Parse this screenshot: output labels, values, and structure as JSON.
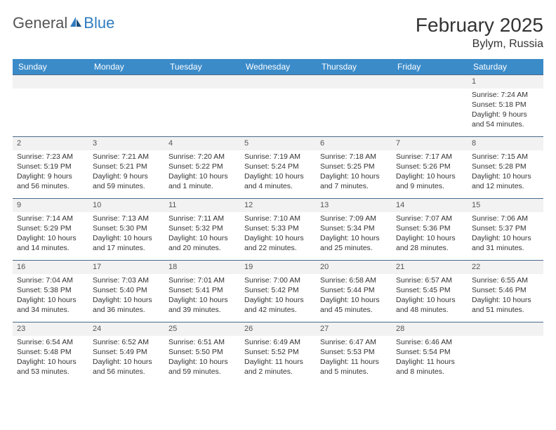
{
  "logo": {
    "part1": "General",
    "part2": "Blue"
  },
  "title": "February 2025",
  "location": "Bylym, Russia",
  "colors": {
    "header_bg": "#3b8bc9",
    "header_text": "#ffffff",
    "daynum_bg": "#f2f2f2",
    "row_border": "#4a6a8a",
    "body_text": "#333333",
    "logo_gray": "#555555",
    "logo_blue": "#2f7bbf",
    "page_bg": "#ffffff"
  },
  "typography": {
    "title_fontsize": 28,
    "location_fontsize": 16,
    "header_fontsize": 12,
    "cell_fontsize": 10.5,
    "daynum_fontsize": 11,
    "font_family": "Arial"
  },
  "calendar": {
    "days_of_week": [
      "Sunday",
      "Monday",
      "Tuesday",
      "Wednesday",
      "Thursday",
      "Friday",
      "Saturday"
    ],
    "weeks": [
      [
        null,
        null,
        null,
        null,
        null,
        null,
        {
          "n": "1",
          "sunrise": "Sunrise: 7:24 AM",
          "sunset": "Sunset: 5:18 PM",
          "daylight1": "Daylight: 9 hours",
          "daylight2": "and 54 minutes."
        }
      ],
      [
        {
          "n": "2",
          "sunrise": "Sunrise: 7:23 AM",
          "sunset": "Sunset: 5:19 PM",
          "daylight1": "Daylight: 9 hours",
          "daylight2": "and 56 minutes."
        },
        {
          "n": "3",
          "sunrise": "Sunrise: 7:21 AM",
          "sunset": "Sunset: 5:21 PM",
          "daylight1": "Daylight: 9 hours",
          "daylight2": "and 59 minutes."
        },
        {
          "n": "4",
          "sunrise": "Sunrise: 7:20 AM",
          "sunset": "Sunset: 5:22 PM",
          "daylight1": "Daylight: 10 hours",
          "daylight2": "and 1 minute."
        },
        {
          "n": "5",
          "sunrise": "Sunrise: 7:19 AM",
          "sunset": "Sunset: 5:24 PM",
          "daylight1": "Daylight: 10 hours",
          "daylight2": "and 4 minutes."
        },
        {
          "n": "6",
          "sunrise": "Sunrise: 7:18 AM",
          "sunset": "Sunset: 5:25 PM",
          "daylight1": "Daylight: 10 hours",
          "daylight2": "and 7 minutes."
        },
        {
          "n": "7",
          "sunrise": "Sunrise: 7:17 AM",
          "sunset": "Sunset: 5:26 PM",
          "daylight1": "Daylight: 10 hours",
          "daylight2": "and 9 minutes."
        },
        {
          "n": "8",
          "sunrise": "Sunrise: 7:15 AM",
          "sunset": "Sunset: 5:28 PM",
          "daylight1": "Daylight: 10 hours",
          "daylight2": "and 12 minutes."
        }
      ],
      [
        {
          "n": "9",
          "sunrise": "Sunrise: 7:14 AM",
          "sunset": "Sunset: 5:29 PM",
          "daylight1": "Daylight: 10 hours",
          "daylight2": "and 14 minutes."
        },
        {
          "n": "10",
          "sunrise": "Sunrise: 7:13 AM",
          "sunset": "Sunset: 5:30 PM",
          "daylight1": "Daylight: 10 hours",
          "daylight2": "and 17 minutes."
        },
        {
          "n": "11",
          "sunrise": "Sunrise: 7:11 AM",
          "sunset": "Sunset: 5:32 PM",
          "daylight1": "Daylight: 10 hours",
          "daylight2": "and 20 minutes."
        },
        {
          "n": "12",
          "sunrise": "Sunrise: 7:10 AM",
          "sunset": "Sunset: 5:33 PM",
          "daylight1": "Daylight: 10 hours",
          "daylight2": "and 22 minutes."
        },
        {
          "n": "13",
          "sunrise": "Sunrise: 7:09 AM",
          "sunset": "Sunset: 5:34 PM",
          "daylight1": "Daylight: 10 hours",
          "daylight2": "and 25 minutes."
        },
        {
          "n": "14",
          "sunrise": "Sunrise: 7:07 AM",
          "sunset": "Sunset: 5:36 PM",
          "daylight1": "Daylight: 10 hours",
          "daylight2": "and 28 minutes."
        },
        {
          "n": "15",
          "sunrise": "Sunrise: 7:06 AM",
          "sunset": "Sunset: 5:37 PM",
          "daylight1": "Daylight: 10 hours",
          "daylight2": "and 31 minutes."
        }
      ],
      [
        {
          "n": "16",
          "sunrise": "Sunrise: 7:04 AM",
          "sunset": "Sunset: 5:38 PM",
          "daylight1": "Daylight: 10 hours",
          "daylight2": "and 34 minutes."
        },
        {
          "n": "17",
          "sunrise": "Sunrise: 7:03 AM",
          "sunset": "Sunset: 5:40 PM",
          "daylight1": "Daylight: 10 hours",
          "daylight2": "and 36 minutes."
        },
        {
          "n": "18",
          "sunrise": "Sunrise: 7:01 AM",
          "sunset": "Sunset: 5:41 PM",
          "daylight1": "Daylight: 10 hours",
          "daylight2": "and 39 minutes."
        },
        {
          "n": "19",
          "sunrise": "Sunrise: 7:00 AM",
          "sunset": "Sunset: 5:42 PM",
          "daylight1": "Daylight: 10 hours",
          "daylight2": "and 42 minutes."
        },
        {
          "n": "20",
          "sunrise": "Sunrise: 6:58 AM",
          "sunset": "Sunset: 5:44 PM",
          "daylight1": "Daylight: 10 hours",
          "daylight2": "and 45 minutes."
        },
        {
          "n": "21",
          "sunrise": "Sunrise: 6:57 AM",
          "sunset": "Sunset: 5:45 PM",
          "daylight1": "Daylight: 10 hours",
          "daylight2": "and 48 minutes."
        },
        {
          "n": "22",
          "sunrise": "Sunrise: 6:55 AM",
          "sunset": "Sunset: 5:46 PM",
          "daylight1": "Daylight: 10 hours",
          "daylight2": "and 51 minutes."
        }
      ],
      [
        {
          "n": "23",
          "sunrise": "Sunrise: 6:54 AM",
          "sunset": "Sunset: 5:48 PM",
          "daylight1": "Daylight: 10 hours",
          "daylight2": "and 53 minutes."
        },
        {
          "n": "24",
          "sunrise": "Sunrise: 6:52 AM",
          "sunset": "Sunset: 5:49 PM",
          "daylight1": "Daylight: 10 hours",
          "daylight2": "and 56 minutes."
        },
        {
          "n": "25",
          "sunrise": "Sunrise: 6:51 AM",
          "sunset": "Sunset: 5:50 PM",
          "daylight1": "Daylight: 10 hours",
          "daylight2": "and 59 minutes."
        },
        {
          "n": "26",
          "sunrise": "Sunrise: 6:49 AM",
          "sunset": "Sunset: 5:52 PM",
          "daylight1": "Daylight: 11 hours",
          "daylight2": "and 2 minutes."
        },
        {
          "n": "27",
          "sunrise": "Sunrise: 6:47 AM",
          "sunset": "Sunset: 5:53 PM",
          "daylight1": "Daylight: 11 hours",
          "daylight2": "and 5 minutes."
        },
        {
          "n": "28",
          "sunrise": "Sunrise: 6:46 AM",
          "sunset": "Sunset: 5:54 PM",
          "daylight1": "Daylight: 11 hours",
          "daylight2": "and 8 minutes."
        },
        null
      ]
    ]
  }
}
